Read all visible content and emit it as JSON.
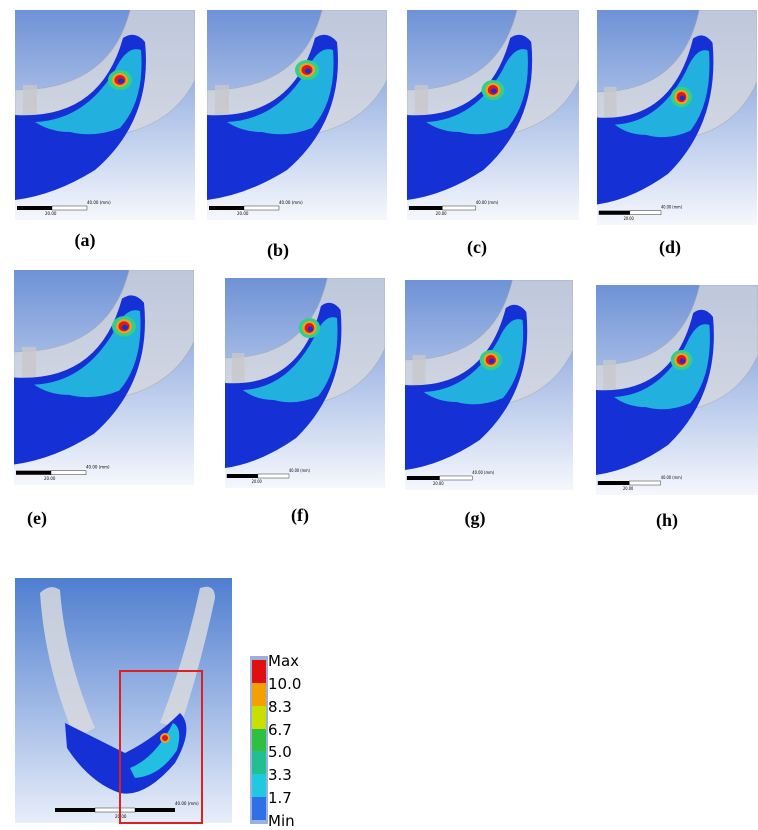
{
  "panels": [
    {
      "label": "(a)",
      "scale_end": "40.00 (mm)",
      "scale_mid": "20.00"
    },
    {
      "label": "(b)",
      "scale_end": "40.00 (mm)",
      "scale_mid": "20.00"
    },
    {
      "label": "(c)",
      "scale_end": "40.00 (mm)",
      "scale_mid": "20.00"
    },
    {
      "label": "(d)",
      "scale_end": "40.00 (mm)",
      "scale_mid": "20.00"
    },
    {
      "label": "(e)",
      "scale_end": "40.00 (mm)",
      "scale_mid": "20.00"
    },
    {
      "label": "(f)",
      "scale_end": "40.00 (mm)",
      "scale_mid": "20.00"
    },
    {
      "label": "(g)",
      "scale_end": "40.00 (mm)",
      "scale_mid": "20.00"
    },
    {
      "label": "(h)",
      "scale_end": "40.00 (mm)",
      "scale_mid": "20.00"
    }
  ],
  "overview": {
    "scale_end": "40.00 (mm)",
    "scale_mid": "20.00"
  },
  "legend": {
    "labels": [
      "Max",
      "10.0",
      "8.3",
      "6.7",
      "5.0",
      "3.3",
      "1.7",
      "Min"
    ]
  }
}
